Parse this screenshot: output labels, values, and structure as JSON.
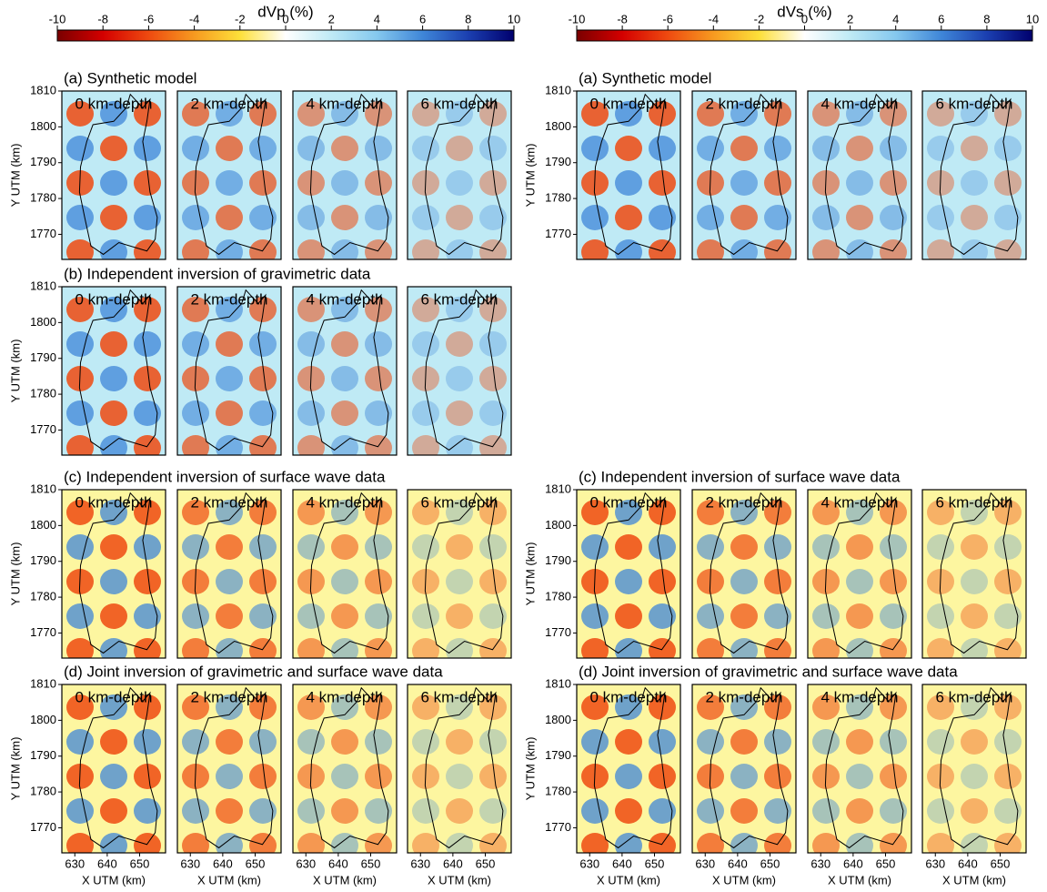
{
  "left": {
    "colorbar": {
      "title": "dVp (%)",
      "ticks": [
        -10,
        -8,
        -6,
        -4,
        -2,
        0,
        2,
        4,
        6,
        8,
        10
      ],
      "colors": [
        "#7a0000",
        "#d40000",
        "#ee4a10",
        "#f79a20",
        "#fde03a",
        "#ffffff",
        "#bfeaf5",
        "#85c8ee",
        "#3f86d8",
        "#1b3fb0",
        "#00006e"
      ]
    },
    "rows": [
      {
        "title": "(a) Synthetic model",
        "panels": [
          "0 km-depth",
          "2 km-depth",
          "4 km-depth",
          "6 km-depth"
        ]
      },
      {
        "title": "(b) Independent inversion of gravimetric data",
        "panels": [
          "0 km-depth",
          "2 km-depth",
          "4 km-depth",
          "6 km-depth"
        ]
      },
      {
        "title": "(c) Independent inversion of surface wave data",
        "panels": [
          "0 km-depth",
          "2 km-depth",
          "4 km-depth",
          "6 km-depth"
        ]
      },
      {
        "title": "(d) Joint inversion of gravimetric and surface wave data",
        "panels": [
          "0 km-depth",
          "2 km-depth",
          "4 km-depth",
          "6 km-depth"
        ]
      }
    ]
  },
  "right": {
    "colorbar": {
      "title": "dVs (%)",
      "ticks": [
        -10,
        -8,
        -6,
        -4,
        -2,
        0,
        2,
        4,
        6,
        8,
        10
      ],
      "colors": [
        "#7a0000",
        "#d40000",
        "#ee4a10",
        "#f79a20",
        "#fde03a",
        "#ffffff",
        "#bfeaf5",
        "#85c8ee",
        "#3f86d8",
        "#1b3fb0",
        "#00006e"
      ]
    },
    "rows": [
      {
        "title": "(a) Synthetic model",
        "panels": [
          "0 km-depth",
          "2 km-depth",
          "4 km-depth",
          "6 km-depth"
        ]
      },
      {
        "title": "(c) Independent inversion of surface wave data",
        "panels": [
          "0 km-depth",
          "2 km-depth",
          "4 km-depth",
          "6 km-depth"
        ]
      },
      {
        "title": "(d) Joint inversion of gravimetric and surface wave data",
        "panels": [
          "0 km-depth",
          "2 km-depth",
          "4 km-depth",
          "6 km-depth"
        ]
      }
    ]
  },
  "yaxis": {
    "label": "Y UTM (km)",
    "lim": [
      1763,
      1810
    ],
    "ticks": [
      1810,
      1800,
      1790,
      1780,
      1770
    ]
  },
  "xaxis": {
    "label": "X UTM (km)",
    "lim": [
      626,
      658
    ],
    "ticks": [
      630,
      640,
      650
    ]
  }
}
